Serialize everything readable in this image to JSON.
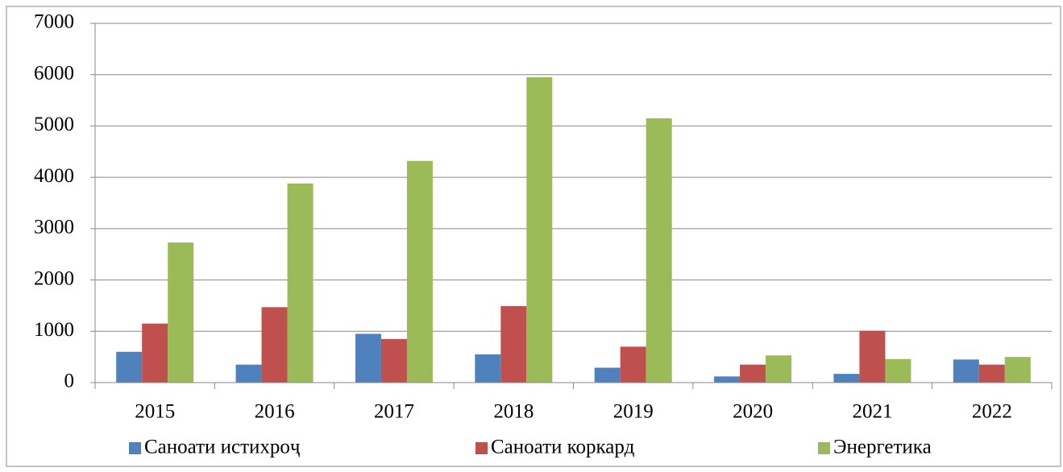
{
  "chart_data": {
    "type": "bar",
    "categories": [
      "2015",
      "2016",
      "2017",
      "2018",
      "2019",
      "2020",
      "2021",
      "2022"
    ],
    "series": [
      {
        "name": "Саноати истихроҷ",
        "color": "#4f81bd",
        "values": [
          600,
          350,
          950,
          550,
          290,
          120,
          170,
          450
        ]
      },
      {
        "name": "Саноати коркард",
        "color": "#c0504d",
        "values": [
          1150,
          1470,
          850,
          1490,
          700,
          350,
          1010,
          350
        ]
      },
      {
        "name": "Энергетика",
        "color": "#9bbb59",
        "values": [
          2730,
          3880,
          4320,
          5950,
          5150,
          530,
          460,
          500
        ]
      }
    ],
    "ylim": [
      0,
      7000
    ],
    "yticks": [
      0,
      1000,
      2000,
      3000,
      4000,
      5000,
      6000,
      7000
    ],
    "grid": true,
    "legend": "bottom"
  }
}
